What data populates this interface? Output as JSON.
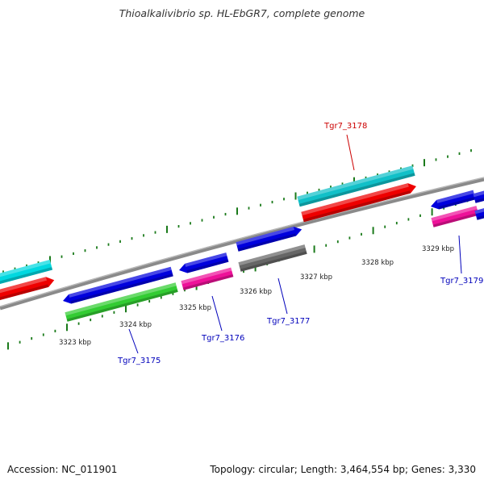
{
  "title": "Thioalkalivibrio sp. HL-EbGR7, complete genome",
  "footer": {
    "accession": "Accession: NC_011901",
    "summary": "Topology: circular; Length: 3,464,554 bp; Genes: 3,330"
  },
  "colors": {
    "backbone": "#8a8a8a",
    "tick": "#1a7a1a",
    "label_red": "#cc0000",
    "label_blue": "#0000bb"
  },
  "scale_labels": [
    "3323 kbp",
    "3324 kbp",
    "3325 kbp",
    "3326 kbp",
    "3327 kbp",
    "3328 kbp",
    "3329 kbp"
  ],
  "gene_labels": [
    {
      "text": "Tgr7_3175",
      "color": "blue"
    },
    {
      "text": "Tgr7_3176",
      "color": "blue"
    },
    {
      "text": "Tgr7_3177",
      "color": "blue"
    },
    {
      "text": "Tgr7_3178",
      "color": "red"
    },
    {
      "text": "Tgr7_3179",
      "color": "blue"
    }
  ],
  "genes": [
    {
      "color": "#00d8e0"
    },
    {
      "color": "#ee0000"
    },
    {
      "color": "#0000dd"
    },
    {
      "color": "#33cc33"
    },
    {
      "color": "#0000dd"
    },
    {
      "color": "#ee1199"
    },
    {
      "color": "#0000dd"
    },
    {
      "color": "#666666"
    },
    {
      "color": "#11c0c8"
    },
    {
      "color": "#ee0000"
    },
    {
      "color": "#0000dd"
    },
    {
      "color": "#0000dd"
    },
    {
      "color": "#ee1199"
    },
    {
      "color": "#0000dd"
    }
  ]
}
